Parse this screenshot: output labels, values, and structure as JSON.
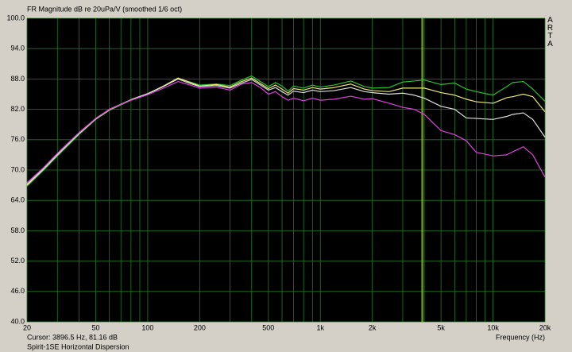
{
  "chart_data": {
    "type": "line",
    "title": "FR Magnitude dB re 20uPa/V (smoothed 1/6 oct)",
    "brand": "ARTA",
    "x_label": "Frequency (Hz)",
    "cursor_text": "Cursor: 3896.5 Hz, 81.16 dB",
    "cursor_x": 3896.5,
    "caption": "Spirit-1SE Horizontal Dispersion",
    "xscale": "log",
    "grid": true,
    "grid_color": "#1f7a1f",
    "cursor_color": "#9acd32",
    "xlim": [
      20,
      20000
    ],
    "ylim": [
      40,
      100
    ],
    "xticks": [
      20,
      50,
      100,
      200,
      500,
      {
        "value": 1000,
        "label": "1k"
      },
      {
        "value": 2000,
        "label": "2k"
      },
      {
        "value": 5000,
        "label": "5k"
      },
      {
        "value": 10000,
        "label": "10k"
      },
      {
        "value": 20000,
        "label": "20k"
      }
    ],
    "xminor": [
      30,
      40,
      60,
      70,
      80,
      90,
      300,
      400,
      600,
      700,
      800,
      900,
      3000,
      4000,
      6000,
      7000,
      8000,
      9000
    ],
    "yticks": [
      {
        "value": 40,
        "label": "40.0"
      },
      {
        "value": 46,
        "label": "46.0"
      },
      {
        "value": 52,
        "label": "52.0"
      },
      {
        "value": 58,
        "label": "58.0"
      },
      {
        "value": 64,
        "label": "64.0"
      },
      {
        "value": 70,
        "label": "70.0"
      },
      {
        "value": 76,
        "label": "76.0"
      },
      {
        "value": 82,
        "label": "82.0"
      },
      {
        "value": 88,
        "label": "88.0"
      },
      {
        "value": 94,
        "label": "94.0"
      },
      {
        "value": 100,
        "label": "100.0"
      }
    ],
    "x": [
      20,
      25,
      30,
      40,
      50,
      60,
      80,
      100,
      120,
      150,
      180,
      200,
      250,
      300,
      350,
      400,
      450,
      500,
      550,
      600,
      650,
      700,
      800,
      900,
      1000,
      1200,
      1500,
      1800,
      2000,
      2500,
      3000,
      3500,
      4000,
      5000,
      6000,
      7000,
      8000,
      10000,
      12000,
      13000,
      15000,
      17000,
      20000
    ],
    "series": [
      {
        "color": "#2fbf2f",
        "values": [
          66.8,
          70,
          72.8,
          77,
          80,
          81.8,
          83.8,
          85,
          86.3,
          88.1,
          87.3,
          86.8,
          87,
          86.7,
          87.8,
          88.6,
          87.5,
          86.5,
          87.3,
          86.6,
          85.6,
          86.6,
          86.2,
          86.8,
          86.4,
          86.8,
          87.6,
          86.5,
          86.2,
          86.3,
          87.4,
          87.6,
          87.8,
          86.9,
          87.2,
          86,
          85.5,
          84.8,
          86.5,
          87.3,
          87.5,
          86,
          83.6
        ]
      },
      {
        "color": "#e8e870",
        "values": [
          67,
          70.2,
          73,
          77.2,
          80.1,
          81.9,
          83.9,
          85.1,
          86.4,
          88.2,
          87.2,
          86.6,
          86.9,
          86.4,
          87.5,
          88.2,
          87.1,
          86.1,
          86.8,
          86,
          85.2,
          86.1,
          85.8,
          86.3,
          86,
          86.3,
          87,
          86,
          85.7,
          85.5,
          86.2,
          86.2,
          86.2,
          85.3,
          84.8,
          84,
          83.5,
          83.2,
          84.3,
          84.5,
          85,
          84.5,
          81.5
        ]
      },
      {
        "color": "#e0e0e0",
        "values": [
          67.2,
          70.3,
          73.1,
          77.3,
          80.2,
          82,
          83.9,
          85.1,
          86.3,
          88,
          87,
          86.5,
          86.7,
          86.2,
          87.2,
          87.9,
          86.8,
          85.8,
          86.3,
          85.5,
          84.8,
          85.6,
          85.3,
          85.8,
          85.5,
          85.7,
          86.3,
          85.5,
          85.3,
          85,
          85.2,
          84.8,
          84.2,
          82.6,
          82,
          80.3,
          80.2,
          80,
          80.6,
          81,
          81.3,
          80,
          76.5
        ]
      },
      {
        "color": "#e040e0",
        "values": [
          67.5,
          70.5,
          73.3,
          77.4,
          80.2,
          82,
          83.8,
          84.9,
          86,
          87.5,
          86.7,
          86.2,
          86.4,
          85.8,
          87,
          87.3,
          86.3,
          85,
          85.5,
          84.5,
          83.8,
          84.2,
          83.7,
          84.2,
          83.8,
          84,
          84.6,
          84,
          84.1,
          83.2,
          82.4,
          82,
          81,
          77.8,
          77,
          75.8,
          73.5,
          72.8,
          73,
          73.6,
          74.6,
          73,
          68.6
        ]
      }
    ]
  }
}
